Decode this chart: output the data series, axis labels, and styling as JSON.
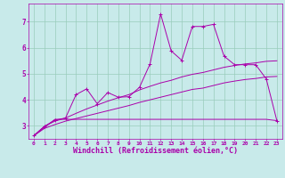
{
  "background_color": "#c8eaea",
  "grid_color": "#99ccbb",
  "line_color": "#aa00aa",
  "xlim": [
    -0.5,
    23.5
  ],
  "ylim": [
    2.5,
    7.7
  ],
  "xlabel": "Windchill (Refroidissement éolien,°C)",
  "xlabel_fontsize": 6.0,
  "xticks": [
    0,
    1,
    2,
    3,
    4,
    5,
    6,
    7,
    8,
    9,
    10,
    11,
    12,
    13,
    14,
    15,
    16,
    17,
    18,
    19,
    20,
    21,
    22,
    23
  ],
  "yticks": [
    3,
    4,
    5,
    6,
    7
  ],
  "line1_x": [
    0,
    1,
    2,
    3,
    4,
    5,
    6,
    7,
    8,
    9,
    10,
    11,
    12,
    13,
    14,
    15,
    16,
    17,
    18,
    19,
    20,
    21,
    22,
    23
  ],
  "line1_y": [
    2.62,
    2.98,
    3.22,
    3.3,
    4.2,
    4.42,
    3.85,
    4.28,
    4.1,
    4.12,
    4.48,
    5.38,
    7.3,
    5.88,
    5.52,
    6.82,
    6.82,
    6.9,
    5.68,
    5.35,
    5.35,
    5.35,
    4.8,
    3.2
  ],
  "line2_x": [
    0,
    2,
    22,
    23
  ],
  "line2_y": [
    2.62,
    3.25,
    3.25,
    3.2
  ],
  "line3_x": [
    0,
    1,
    2,
    3,
    4,
    5,
    6,
    7,
    8,
    9,
    10,
    11,
    12,
    13,
    14,
    15,
    16,
    17,
    18,
    19,
    20,
    21,
    22,
    23
  ],
  "line3_y": [
    2.62,
    2.98,
    3.18,
    3.3,
    3.48,
    3.65,
    3.8,
    3.95,
    4.08,
    4.2,
    4.38,
    4.52,
    4.65,
    4.75,
    4.88,
    4.98,
    5.05,
    5.15,
    5.25,
    5.32,
    5.38,
    5.42,
    5.48,
    5.5
  ],
  "line4_x": [
    0,
    1,
    2,
    3,
    4,
    5,
    6,
    7,
    8,
    9,
    10,
    11,
    12,
    13,
    14,
    15,
    16,
    17,
    18,
    19,
    20,
    21,
    22,
    23
  ],
  "line4_y": [
    2.62,
    2.9,
    3.05,
    3.18,
    3.28,
    3.38,
    3.48,
    3.58,
    3.68,
    3.78,
    3.9,
    4.0,
    4.1,
    4.2,
    4.3,
    4.4,
    4.45,
    4.55,
    4.65,
    4.72,
    4.78,
    4.82,
    4.88,
    4.9
  ]
}
